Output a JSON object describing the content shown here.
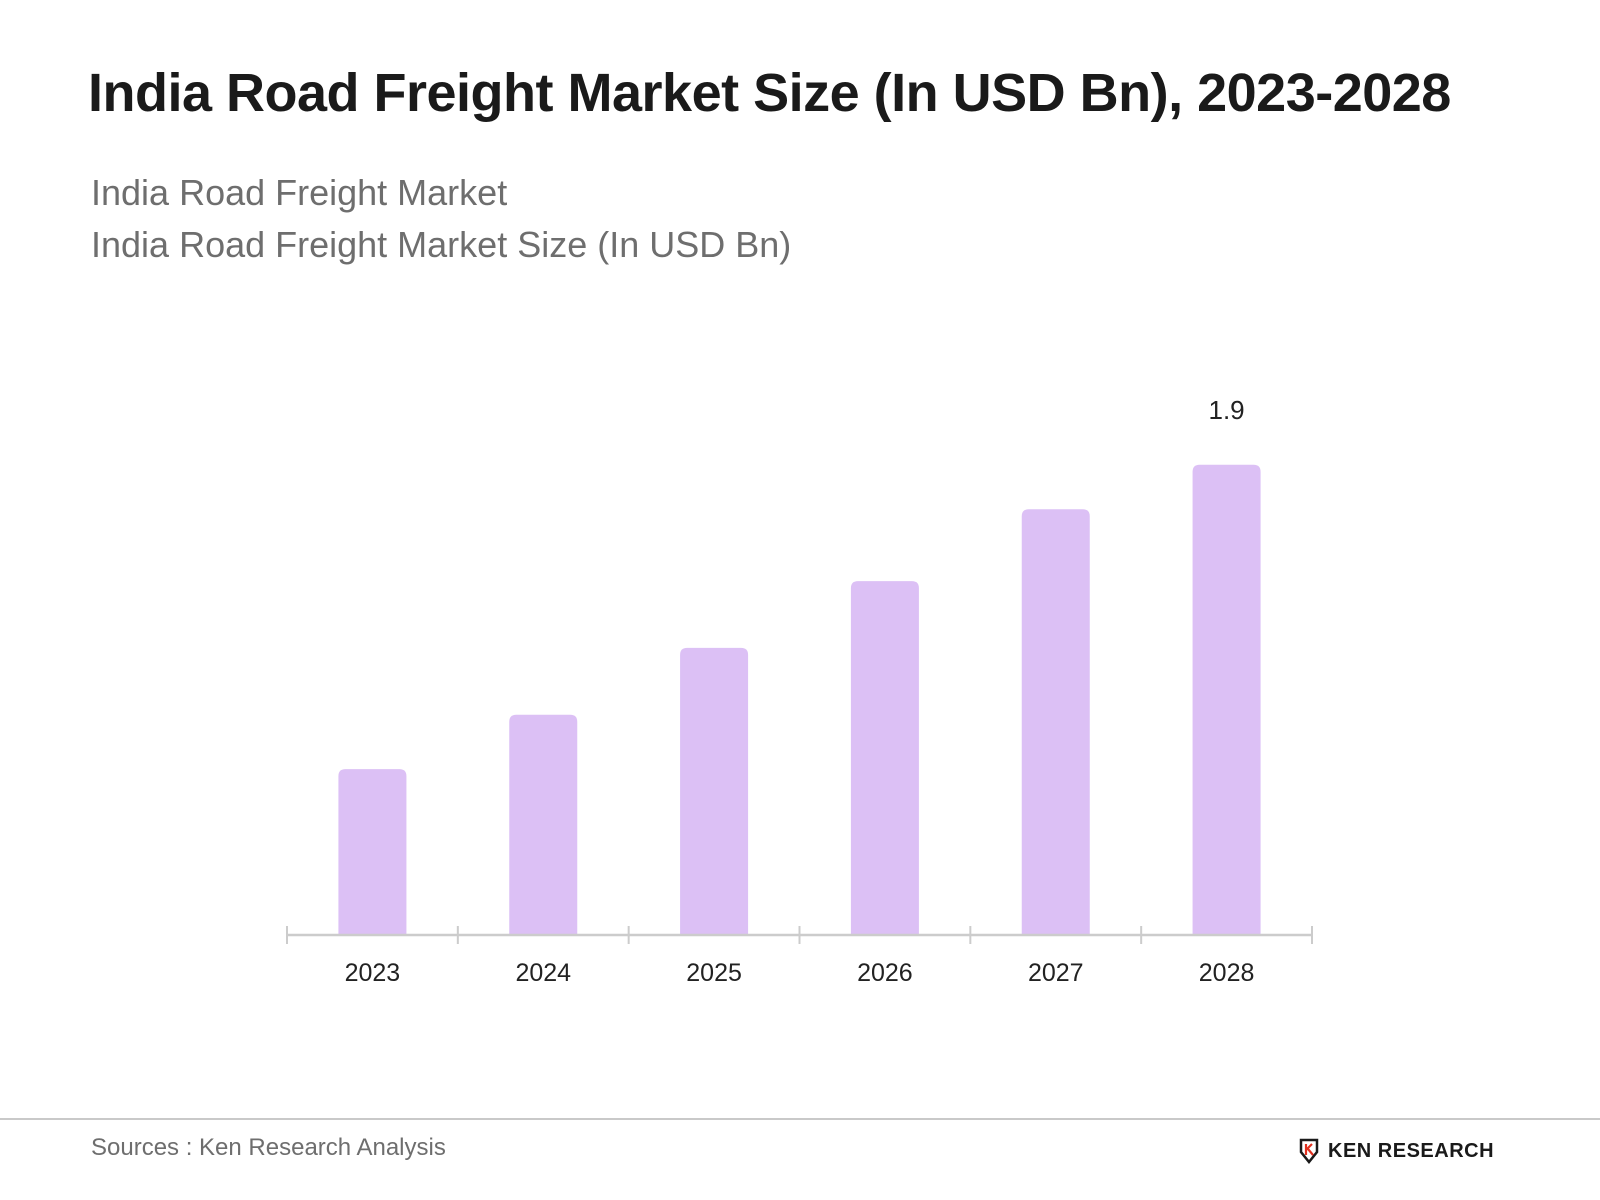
{
  "title": "India Road Freight Market Size (In USD Bn), 2023-2028",
  "subtitle_line1": "India Road Freight Market",
  "subtitle_line2": "India Road Freight Market Size (In USD Bn)",
  "source": "Sources : Ken Research Analysis",
  "logo": {
    "text": "KEN RESEARCH",
    "icon": "ken-research-logo-icon"
  },
  "colors": {
    "bar": "#dcc0f5",
    "axis": "#cccccc",
    "title": "#1a1a1a",
    "subtitle": "#6e6e6e"
  },
  "chart_data": {
    "type": "bar",
    "title": "India Road Freight Market Size (In USD Bn), 2023-2028",
    "categories": [
      "2023",
      "2024",
      "2025",
      "2026",
      "2027",
      "2028"
    ],
    "values": [
      0.67,
      0.89,
      1.16,
      1.43,
      1.72,
      1.9
    ],
    "data_labels": [
      "",
      "",
      "",
      "",
      "",
      "1.9"
    ],
    "xlabel": "",
    "ylabel": "",
    "ylim": [
      0,
      2.0
    ],
    "grid": false,
    "legend": "none"
  }
}
